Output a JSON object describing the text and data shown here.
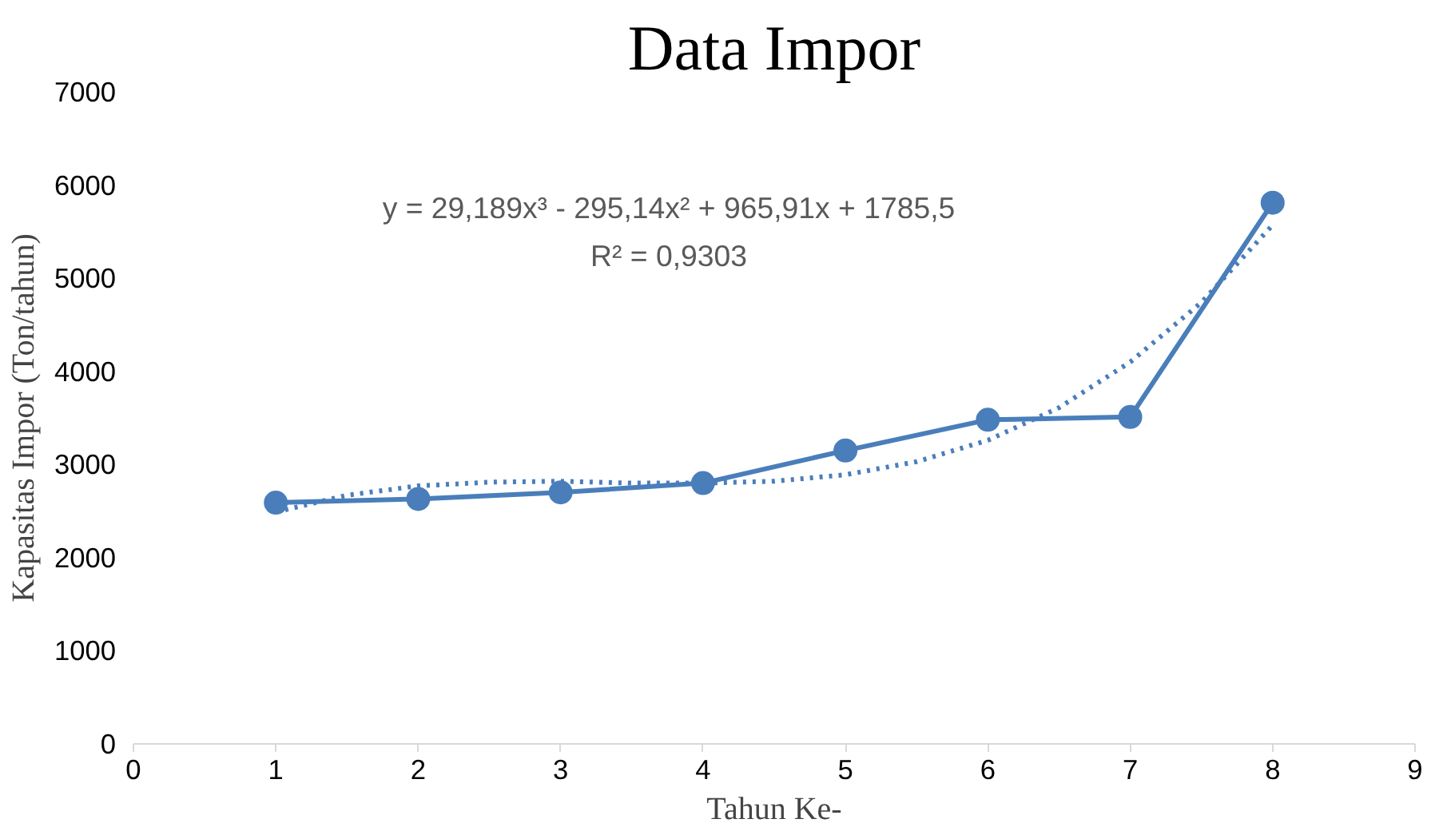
{
  "chart_data": {
    "type": "line",
    "title": "Data Impor",
    "xlabel": "Tahun Ke-",
    "ylabel": "Kapasitas Impor (Ton/tahun)",
    "x": [
      1,
      2,
      3,
      4,
      5,
      6,
      7,
      8
    ],
    "series": [
      {
        "color": "#4a7ebb",
        "values": [
          2590,
          2630,
          2700,
          2800,
          3150,
          3480,
          3510,
          5810
        ]
      },
      {
        "type": "line",
        "color": "#4a7ebb",
        "marker": "none",
        "line_style": "dotted",
        "x": [
          1,
          1.5,
          2,
          2.5,
          3,
          3.5,
          4,
          4.5,
          5,
          5.5,
          6,
          6.5,
          7,
          7.5,
          8
        ],
        "values": [
          2490,
          2670,
          2770,
          2810,
          2820,
          2800,
          2800,
          2820,
          2890,
          3030,
          3260,
          3610,
          4100,
          4740,
          5570
        ]
      }
    ],
    "annotations": [
      "y = 29,189x³ - 295,14x² + 965,91x + 1785,5",
      "R² = 0,9303"
    ],
    "xlim": [
      0,
      9
    ],
    "xticks": [
      0,
      1,
      2,
      3,
      4,
      5,
      6,
      7,
      8,
      9
    ],
    "ylim": [
      0,
      7000
    ],
    "yticks": [
      0,
      1000,
      2000,
      3000,
      4000,
      5000,
      6000,
      7000
    ],
    "grid": false,
    "marker": "circle"
  }
}
